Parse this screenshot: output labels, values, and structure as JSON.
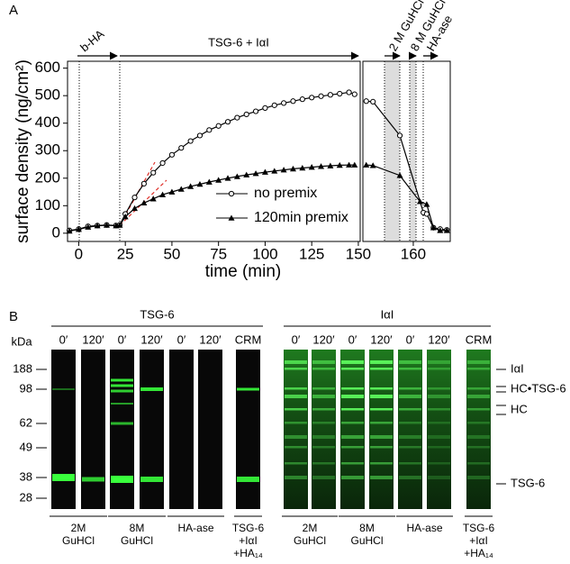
{
  "chart_data": {
    "type": "line",
    "panel_label": "A",
    "xlabel": "time (min)",
    "ylabel": "surface density (ng/cm²)",
    "xlim": [
      -6,
      151
    ],
    "xticks": [
      0,
      25,
      50,
      75,
      100,
      125,
      150
    ],
    "x2lim": [
      152.5,
      165.5
    ],
    "x2ticks": [
      160
    ],
    "ylim": [
      -30,
      625
    ],
    "yticks": [
      0,
      100,
      200,
      300,
      400,
      500,
      600
    ],
    "events": [
      "b-HA",
      "TSG-6 + IαI",
      "2 M GuHCl",
      "8 M GuHCl",
      "HA-ase"
    ],
    "series": [
      {
        "name": "no premix",
        "color": "#000000",
        "marker": "circle",
        "x": [
          -5,
          0,
          5,
          10,
          15,
          20,
          22,
          25,
          30,
          35,
          40,
          45,
          50,
          55,
          60,
          65,
          70,
          75,
          80,
          85,
          90,
          95,
          100,
          105,
          110,
          115,
          120,
          125,
          130,
          135,
          140,
          145,
          148,
          151,
          153,
          154,
          158,
          161.5,
          162,
          163,
          164,
          165
        ],
        "values": [
          10,
          15,
          25,
          28,
          30,
          28,
          30,
          70,
          130,
          180,
          220,
          255,
          285,
          310,
          335,
          355,
          375,
          390,
          405,
          420,
          432,
          443,
          455,
          465,
          473,
          480,
          487,
          493,
          498,
          503,
          507,
          512,
          505,
          null,
          480,
          478,
          355,
          75,
          70,
          20,
          15,
          12
        ]
      },
      {
        "name": "120min premix",
        "color": "#000000",
        "marker": "triangle",
        "x": [
          -5,
          0,
          5,
          10,
          15,
          20,
          22,
          25,
          30,
          35,
          40,
          45,
          50,
          55,
          60,
          65,
          70,
          75,
          80,
          85,
          90,
          95,
          100,
          105,
          110,
          115,
          120,
          125,
          130,
          135,
          140,
          145,
          148,
          151,
          153,
          154,
          158,
          161,
          162,
          163,
          164,
          165
        ],
        "values": [
          8,
          14,
          22,
          27,
          29,
          27,
          29,
          60,
          90,
          110,
          125,
          140,
          150,
          160,
          170,
          178,
          186,
          193,
          200,
          206,
          212,
          217,
          222,
          226,
          230,
          234,
          237,
          240,
          243,
          245,
          247,
          248,
          248,
          null,
          248,
          246,
          210,
          115,
          105,
          20,
          10,
          10
        ]
      }
    ]
  },
  "gel": {
    "label": "B",
    "unit": "kDa",
    "markers": [
      188,
      98,
      62,
      49,
      38,
      28
    ],
    "groups": [
      {
        "title": "TSG-6",
        "lanes": [
          "0′",
          "120′",
          "0′",
          "120′",
          "0′",
          "120′",
          "CRM"
        ],
        "treatments": [
          [
            "2M",
            "GuHCl"
          ],
          [
            "8M",
            "GuHCl"
          ],
          [
            "HA-ase"
          ],
          [
            "TSG-6",
            "+IαI",
            "+HA₁₄"
          ]
        ]
      },
      {
        "title": "IαI",
        "lanes": [
          "0′",
          "120′",
          "0′",
          "120′",
          "0′",
          "120′",
          "CRM"
        ],
        "treatments": [
          [
            "2M",
            "GuHCl"
          ],
          [
            "8M",
            "GuHCl"
          ],
          [
            "HA-ase"
          ],
          [
            "TSG-6",
            "+IαI",
            "+HA₁₄"
          ]
        ]
      }
    ],
    "annotations": [
      "IαI",
      "HC•TSG-6",
      "HC",
      "TSG-6"
    ]
  }
}
